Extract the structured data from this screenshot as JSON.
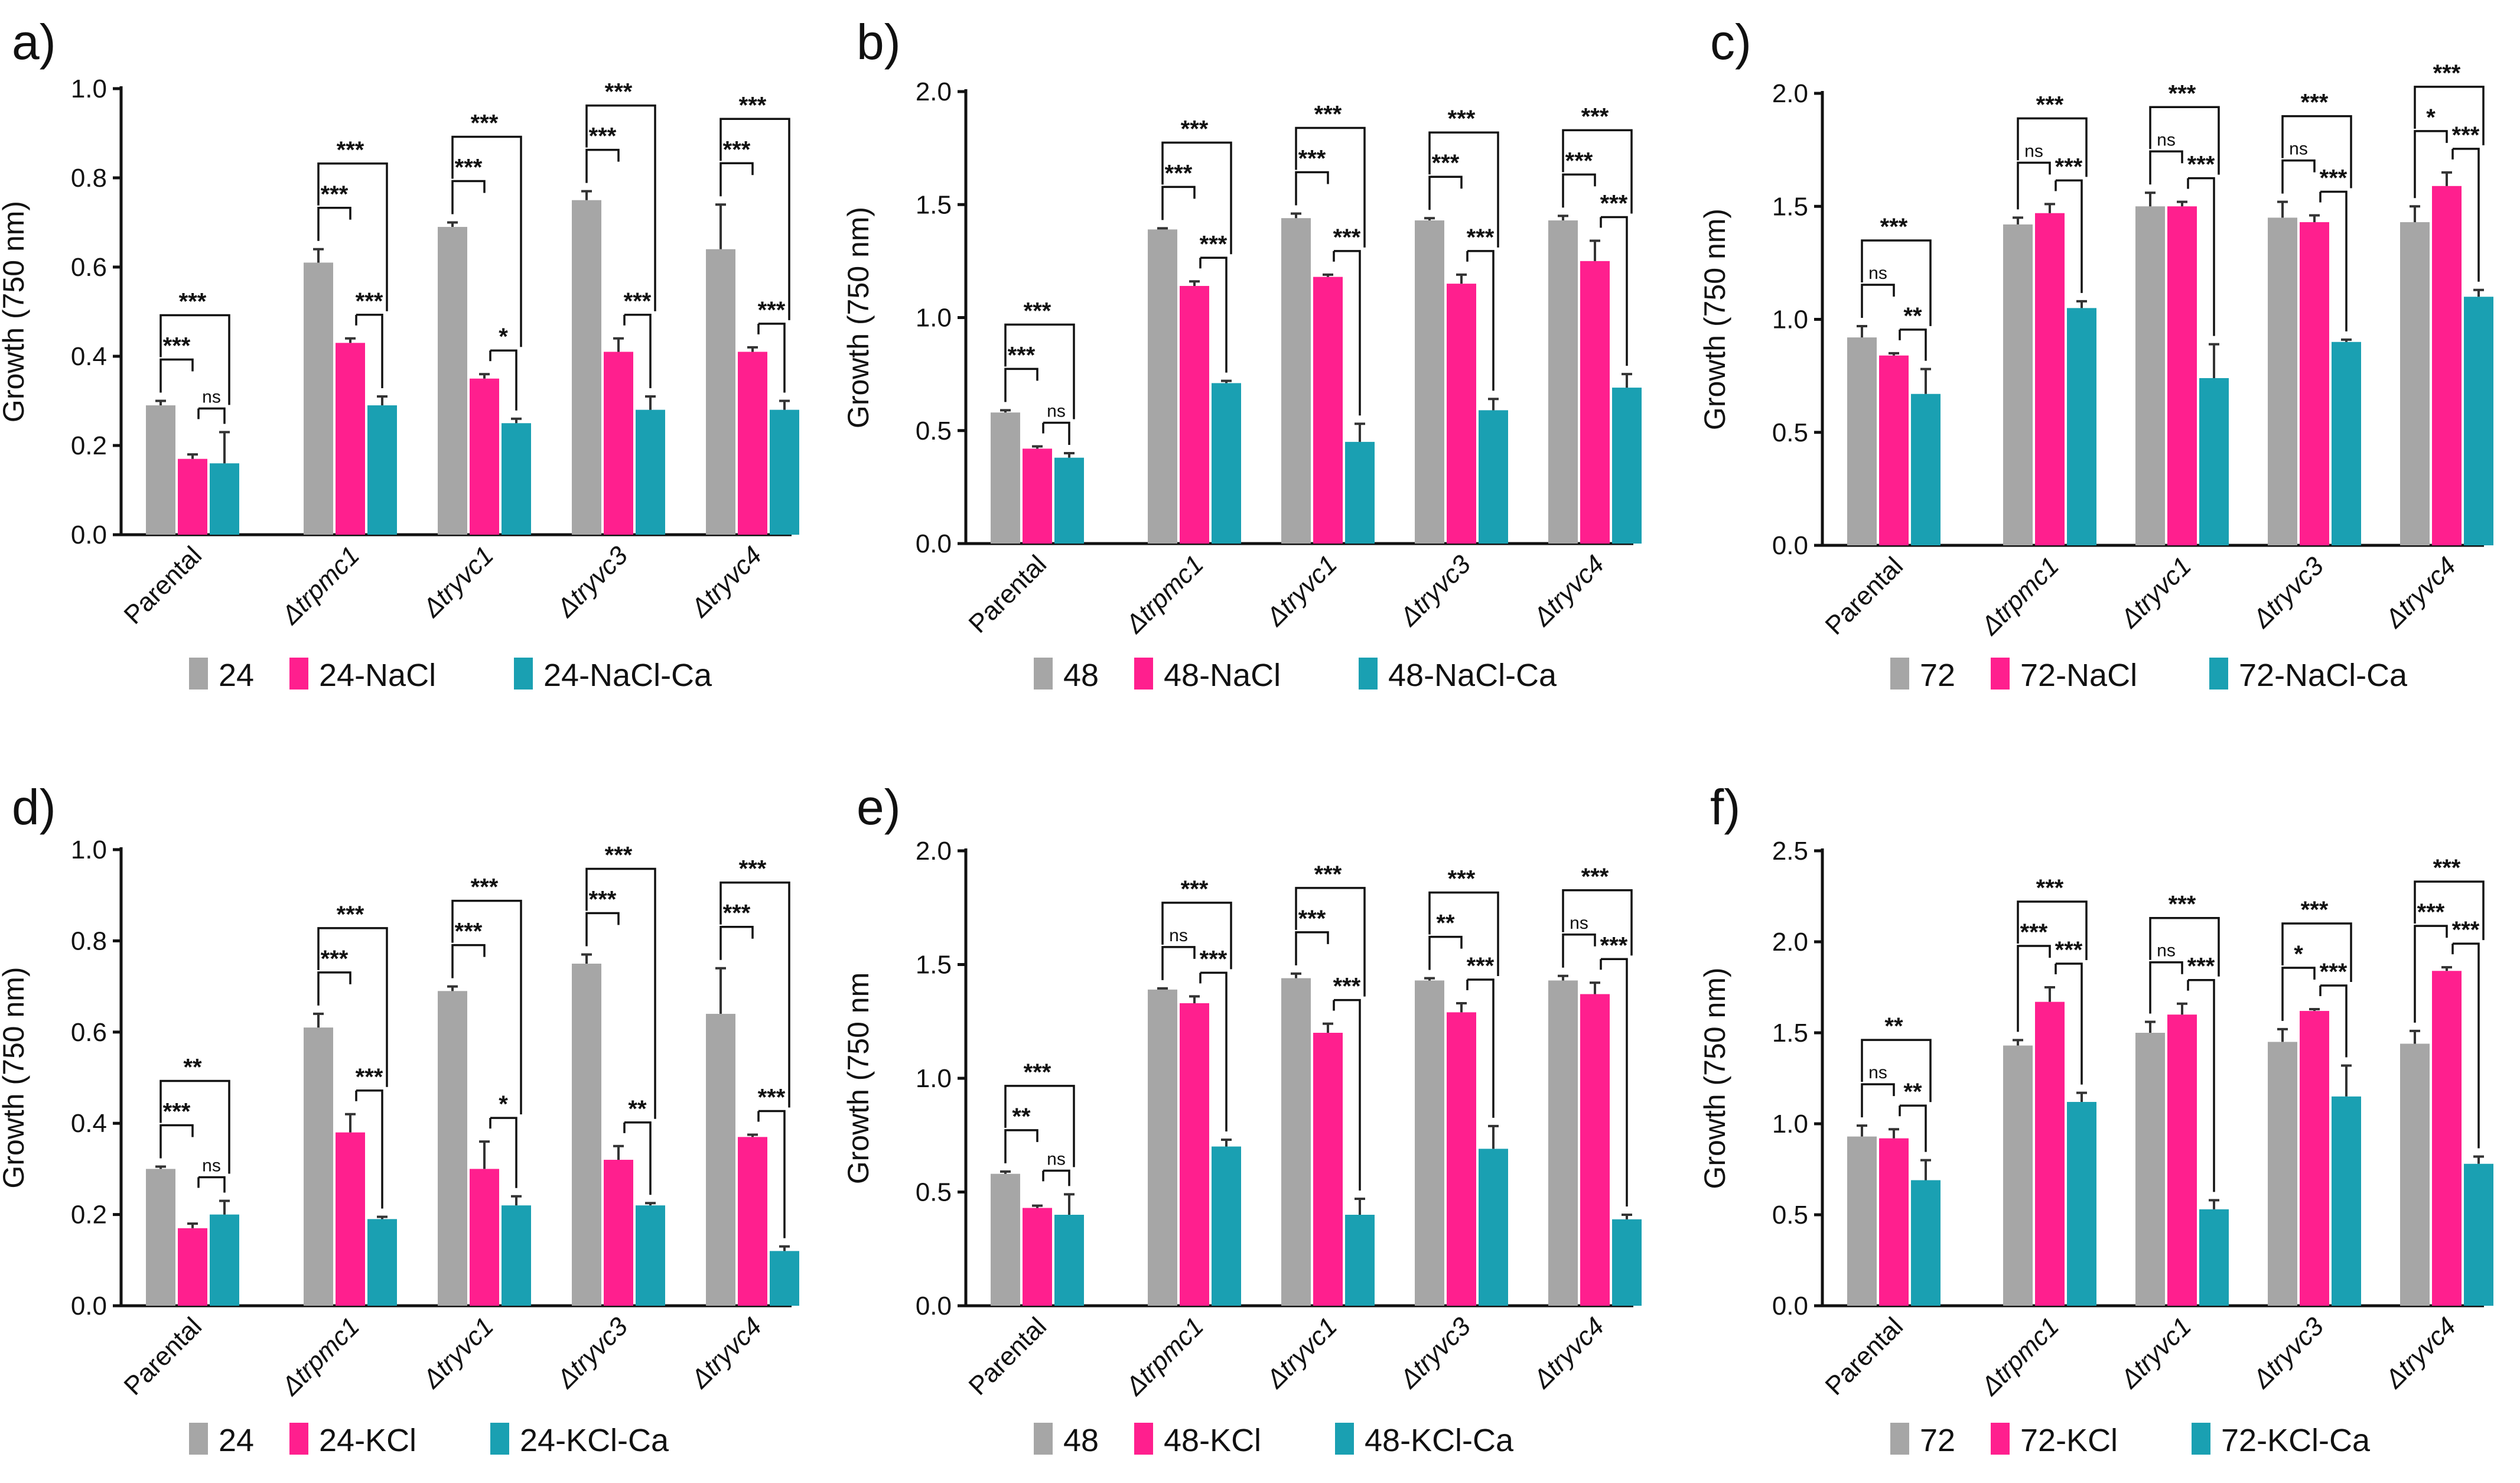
{
  "colors": {
    "gray": "#a6a6a6",
    "pink": "#ff1f8e",
    "teal": "#1aa0b2"
  },
  "chart_data": [
    {
      "panel": "a)",
      "type": "bar",
      "ylabel": "Growth (750 nm)",
      "ylim": [
        0,
        1.0
      ],
      "yticks": [
        "0.0",
        "0.2",
        "0.4",
        "0.6",
        "0.8",
        "1.0"
      ],
      "categories": [
        "Parental",
        "Δtrpmc1",
        "Δtryvc1",
        "Δtryvc3",
        "Δtryvc4"
      ],
      "series": [
        {
          "name": "24",
          "color": "gray",
          "values": [
            0.29,
            0.61,
            0.69,
            0.75,
            0.64
          ],
          "errors": [
            0.01,
            0.03,
            0.01,
            0.02,
            0.1
          ]
        },
        {
          "name": "24-NaCl",
          "color": "pink",
          "values": [
            0.17,
            0.43,
            0.35,
            0.41,
            0.41
          ],
          "errors": [
            0.01,
            0.01,
            0.01,
            0.03,
            0.01
          ]
        },
        {
          "name": "24-NaCl-Ca",
          "color": "teal",
          "values": [
            0.16,
            0.29,
            0.25,
            0.28,
            0.28
          ],
          "errors": [
            0.07,
            0.02,
            0.01,
            0.03,
            0.02
          ]
        }
      ],
      "sig": [
        {
          "short": "***",
          "mid": "ns",
          "long": "***"
        },
        {
          "short": "***",
          "mid": "***",
          "long": "***"
        },
        {
          "short": "***",
          "mid": "*",
          "long": "***"
        },
        {
          "short": "***",
          "mid": "***",
          "long": "***"
        },
        {
          "short": "***",
          "mid": "***",
          "long": "***"
        }
      ]
    },
    {
      "panel": "b)",
      "type": "bar",
      "ylabel": "Growth (750 nm)",
      "ylim": [
        0,
        2.0
      ],
      "yticks": [
        "0.0",
        "0.5",
        "1.0",
        "1.5",
        "2.0"
      ],
      "categories": [
        "Parental",
        "Δtrpmc1",
        "Δtryvc1",
        "Δtryvc3",
        "Δtryvc4"
      ],
      "series": [
        {
          "name": "48",
          "color": "gray",
          "values": [
            0.58,
            1.39,
            1.44,
            1.43,
            1.43
          ],
          "errors": [
            0.01,
            0.005,
            0.02,
            0.01,
            0.02
          ]
        },
        {
          "name": "48-NaCl",
          "color": "pink",
          "values": [
            0.42,
            1.14,
            1.18,
            1.15,
            1.25
          ],
          "errors": [
            0.01,
            0.02,
            0.01,
            0.04,
            0.09
          ]
        },
        {
          "name": "48-NaCl-Ca",
          "color": "teal",
          "values": [
            0.38,
            0.71,
            0.45,
            0.59,
            0.69
          ],
          "errors": [
            0.02,
            0.01,
            0.08,
            0.05,
            0.06
          ]
        }
      ],
      "sig": [
        {
          "short": "***",
          "mid": "ns",
          "long": "***"
        },
        {
          "short": "***",
          "mid": "***",
          "long": "***"
        },
        {
          "short": "***",
          "mid": "***",
          "long": "***"
        },
        {
          "short": "***",
          "mid": "***",
          "long": "***"
        },
        {
          "short": "***",
          "mid": "***",
          "long": "***"
        }
      ]
    },
    {
      "panel": "c)",
      "type": "bar",
      "ylabel": "Growth (750 nm)",
      "ylim": [
        0,
        2.0
      ],
      "yticks": [
        "0.0",
        "0.5",
        "1.0",
        "1.5",
        "2.0"
      ],
      "categories": [
        "Parental",
        "Δtrpmc1",
        "Δtryvc1",
        "Δtryvc3",
        "Δtryvc4"
      ],
      "series": [
        {
          "name": "72",
          "color": "gray",
          "values": [
            0.92,
            1.42,
            1.5,
            1.45,
            1.43
          ],
          "errors": [
            0.05,
            0.03,
            0.06,
            0.07,
            0.07
          ]
        },
        {
          "name": "72-NaCl",
          "color": "pink",
          "values": [
            0.84,
            1.47,
            1.5,
            1.43,
            1.59
          ],
          "errors": [
            0.01,
            0.04,
            0.02,
            0.03,
            0.06
          ]
        },
        {
          "name": "72-NaCl-Ca",
          "color": "teal",
          "values": [
            0.67,
            1.05,
            0.74,
            0.9,
            1.1
          ],
          "errors": [
            0.11,
            0.03,
            0.15,
            0.01,
            0.03
          ]
        }
      ],
      "sig": [
        {
          "short": "ns",
          "mid": "**",
          "long": "***"
        },
        {
          "short": "ns",
          "mid": "***",
          "long": "***"
        },
        {
          "short": "ns",
          "mid": "***",
          "long": "***"
        },
        {
          "short": "ns",
          "mid": "***",
          "long": "***"
        },
        {
          "short": "*",
          "mid": "***",
          "long": "***"
        }
      ]
    },
    {
      "panel": "d)",
      "type": "bar",
      "ylabel": "Growth (750 nm)",
      "ylim": [
        0,
        1.0
      ],
      "yticks": [
        "0.0",
        "0.2",
        "0.4",
        "0.6",
        "0.8",
        "1.0"
      ],
      "categories": [
        "Parental",
        "Δtrpmc1",
        "Δtryvc1",
        "Δtryvc3",
        "Δtryvc4"
      ],
      "series": [
        {
          "name": "24",
          "color": "gray",
          "values": [
            0.3,
            0.61,
            0.69,
            0.75,
            0.64
          ],
          "errors": [
            0.005,
            0.03,
            0.01,
            0.02,
            0.1
          ]
        },
        {
          "name": "24-KCl",
          "color": "pink",
          "values": [
            0.17,
            0.38,
            0.3,
            0.32,
            0.37
          ],
          "errors": [
            0.01,
            0.04,
            0.06,
            0.03,
            0.005
          ]
        },
        {
          "name": "24-KCl-Ca",
          "color": "teal",
          "values": [
            0.2,
            0.19,
            0.22,
            0.22,
            0.12
          ],
          "errors": [
            0.03,
            0.005,
            0.02,
            0.005,
            0.01
          ]
        }
      ],
      "sig": [
        {
          "short": "***",
          "mid": "ns",
          "long": "**"
        },
        {
          "short": "***",
          "mid": "***",
          "long": "***"
        },
        {
          "short": "***",
          "mid": "*",
          "long": "***"
        },
        {
          "short": "***",
          "mid": "**",
          "long": "***"
        },
        {
          "short": "***",
          "mid": "***",
          "long": "***"
        }
      ]
    },
    {
      "panel": "e)",
      "type": "bar",
      "ylabel": "Growth (750 nm",
      "ylim": [
        0,
        2.0
      ],
      "yticks": [
        "0.0",
        "0.5",
        "1.0",
        "1.5",
        "2.0"
      ],
      "categories": [
        "Parental",
        "Δtrpmc1",
        "Δtryvc1",
        "Δtryvc3",
        "Δtryvc4"
      ],
      "series": [
        {
          "name": "48",
          "color": "gray",
          "values": [
            0.58,
            1.39,
            1.44,
            1.43,
            1.43
          ],
          "errors": [
            0.01,
            0.005,
            0.02,
            0.01,
            0.02
          ]
        },
        {
          "name": "48-KCl",
          "color": "pink",
          "values": [
            0.43,
            1.33,
            1.2,
            1.29,
            1.37
          ],
          "errors": [
            0.01,
            0.03,
            0.04,
            0.04,
            0.05
          ]
        },
        {
          "name": "48-KCl-Ca",
          "color": "teal",
          "values": [
            0.4,
            0.7,
            0.4,
            0.69,
            0.38
          ],
          "errors": [
            0.09,
            0.03,
            0.07,
            0.1,
            0.02
          ]
        }
      ],
      "sig": [
        {
          "short": "**",
          "mid": "ns",
          "long": "***"
        },
        {
          "short": "ns",
          "mid": "***",
          "long": "***"
        },
        {
          "short": "***",
          "mid": "***",
          "long": "***"
        },
        {
          "short": "**",
          "mid": "***",
          "long": "***"
        },
        {
          "short": "ns",
          "mid": "***",
          "long": "***"
        }
      ]
    },
    {
      "panel": "f)",
      "type": "bar",
      "ylabel": "Growth (750 nm)",
      "ylim": [
        0,
        2.5
      ],
      "yticks": [
        "0.0",
        "0.5",
        "1.0",
        "1.5",
        "2.0",
        "2.5"
      ],
      "categories": [
        "Parental",
        "Δtrpmc1",
        "Δtryvc1",
        "Δtryvc3",
        "Δtryvc4"
      ],
      "series": [
        {
          "name": "72",
          "color": "gray",
          "values": [
            0.93,
            1.43,
            1.5,
            1.45,
            1.44
          ],
          "errors": [
            0.06,
            0.03,
            0.06,
            0.07,
            0.07
          ]
        },
        {
          "name": "72-KCl",
          "color": "pink",
          "values": [
            0.92,
            1.67,
            1.6,
            1.62,
            1.84
          ],
          "errors": [
            0.05,
            0.08,
            0.06,
            0.01,
            0.02
          ]
        },
        {
          "name": "72-KCl-Ca",
          "color": "teal",
          "values": [
            0.69,
            1.12,
            0.53,
            1.15,
            0.78
          ],
          "errors": [
            0.11,
            0.05,
            0.05,
            0.17,
            0.04
          ]
        }
      ],
      "sig": [
        {
          "short": "ns",
          "mid": "**",
          "long": "**"
        },
        {
          "short": "***",
          "mid": "***",
          "long": "***"
        },
        {
          "short": "ns",
          "mid": "***",
          "long": "***"
        },
        {
          "short": "*",
          "mid": "***",
          "long": "***"
        },
        {
          "short": "***",
          "mid": "***",
          "long": "***"
        }
      ]
    }
  ]
}
